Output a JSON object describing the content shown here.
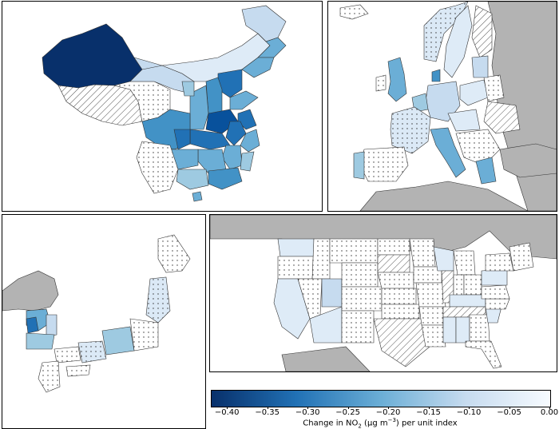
{
  "panels": [
    {
      "id": "china"
    },
    {
      "id": "europe"
    },
    {
      "id": "korea-japan"
    },
    {
      "id": "usa"
    }
  ],
  "colorbar": {
    "min": -0.42,
    "max": 0.0,
    "colormap": "Blues_r",
    "ticks": [
      "−0.40",
      "−0.35",
      "−0.30",
      "−0.25",
      "−0.20",
      "−0.15",
      "−0.10",
      "−0.05",
      "0.00"
    ],
    "tick_values": [
      -0.4,
      -0.35,
      -0.3,
      -0.25,
      -0.2,
      -0.15,
      -0.1,
      -0.05,
      0.0
    ],
    "label_prefix": "Change in NO",
    "label_sub": "2",
    "label_mid": " (μg m",
    "label_sup": "−3",
    "label_suffix": ") per unit index"
  },
  "legend_patterns": {
    "hatched": "diagonal-hatch",
    "dotted": "dot-stipple",
    "no_data": "#b3b3b3"
  },
  "colors": {
    "darkest": "#08306b",
    "dark": "#2171b5",
    "mid": "#6baed6",
    "light": "#c6dbef",
    "lightest": "#f7fbff",
    "ocean": "#ffffff",
    "outside": "#b3b3b3"
  }
}
